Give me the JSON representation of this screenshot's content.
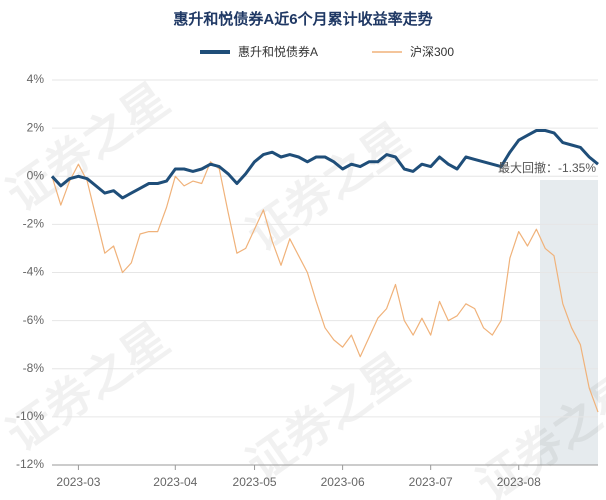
{
  "chart_data": {
    "type": "line",
    "title": "惠升和悦债券A近6个月累计收益率走势",
    "watermark": "证券之星",
    "annotation": "最大回撤：-1.35%",
    "categories": [
      null,
      null,
      null,
      "2023-03",
      null,
      null,
      null,
      null,
      null,
      null,
      null,
      null,
      null,
      null,
      "2023-04",
      null,
      null,
      null,
      null,
      null,
      null,
      null,
      null,
      "2023-05",
      null,
      null,
      null,
      null,
      null,
      null,
      null,
      null,
      null,
      "2023-06",
      null,
      null,
      null,
      null,
      null,
      null,
      null,
      null,
      null,
      "2023-07",
      null,
      null,
      null,
      null,
      null,
      null,
      null,
      null,
      null,
      "2023-08",
      null,
      null,
      null,
      null,
      null,
      null,
      null,
      null,
      null
    ],
    "series": [
      {
        "name": "惠升和悦债券A",
        "color": "#1f4e79",
        "values": [
          0.0,
          -0.4,
          -0.1,
          0.0,
          -0.1,
          -0.4,
          -0.7,
          -0.6,
          -0.9,
          -0.7,
          -0.5,
          -0.3,
          -0.3,
          -0.2,
          0.3,
          0.3,
          0.2,
          0.3,
          0.5,
          0.4,
          0.1,
          -0.3,
          0.1,
          0.6,
          0.9,
          1.0,
          0.8,
          0.9,
          0.8,
          0.6,
          0.8,
          0.8,
          0.6,
          0.3,
          0.5,
          0.4,
          0.6,
          0.6,
          0.9,
          0.8,
          0.3,
          0.2,
          0.5,
          0.4,
          0.8,
          0.5,
          0.3,
          0.8,
          0.7,
          0.6,
          0.5,
          0.4,
          1.0,
          1.5,
          1.7,
          1.9,
          1.9,
          1.8,
          1.4,
          1.3,
          1.2,
          0.8,
          0.5
        ]
      },
      {
        "name": "沪深300",
        "color": "#f0b27a",
        "values": [
          0.0,
          -1.2,
          -0.2,
          0.5,
          -0.2,
          -1.7,
          -3.2,
          -2.9,
          -4.0,
          -3.6,
          -2.4,
          -2.3,
          -2.3,
          -1.3,
          0.0,
          -0.4,
          -0.2,
          -0.3,
          0.6,
          0.3,
          -1.5,
          -3.2,
          -3.0,
          -2.2,
          -1.4,
          -2.7,
          -3.7,
          -2.6,
          -3.3,
          -4.0,
          -5.2,
          -6.3,
          -6.8,
          -7.1,
          -6.6,
          -7.5,
          -6.7,
          -5.9,
          -5.5,
          -4.5,
          -6.0,
          -6.6,
          -5.9,
          -6.6,
          -5.2,
          -6.0,
          -5.8,
          -5.3,
          -5.5,
          -6.3,
          -6.6,
          -6.0,
          -3.4,
          -2.3,
          -2.9,
          -2.2,
          -3.0,
          -3.3,
          -5.3,
          -6.3,
          -7.0,
          -8.8,
          -9.8
        ]
      }
    ],
    "ylim": [
      -12,
      4
    ],
    "yticks": [
      {
        "value": 4,
        "label": "4%"
      },
      {
        "value": 2,
        "label": "2%"
      },
      {
        "value": 0,
        "label": "0%"
      },
      {
        "value": -2,
        "label": "-2%"
      },
      {
        "value": -4,
        "label": "-4%"
      },
      {
        "value": -6,
        "label": "-6%"
      },
      {
        "value": -8,
        "label": "-8%"
      },
      {
        "value": -10,
        "label": "-10%"
      },
      {
        "value": -12,
        "label": "-12%"
      }
    ],
    "grid": true
  }
}
